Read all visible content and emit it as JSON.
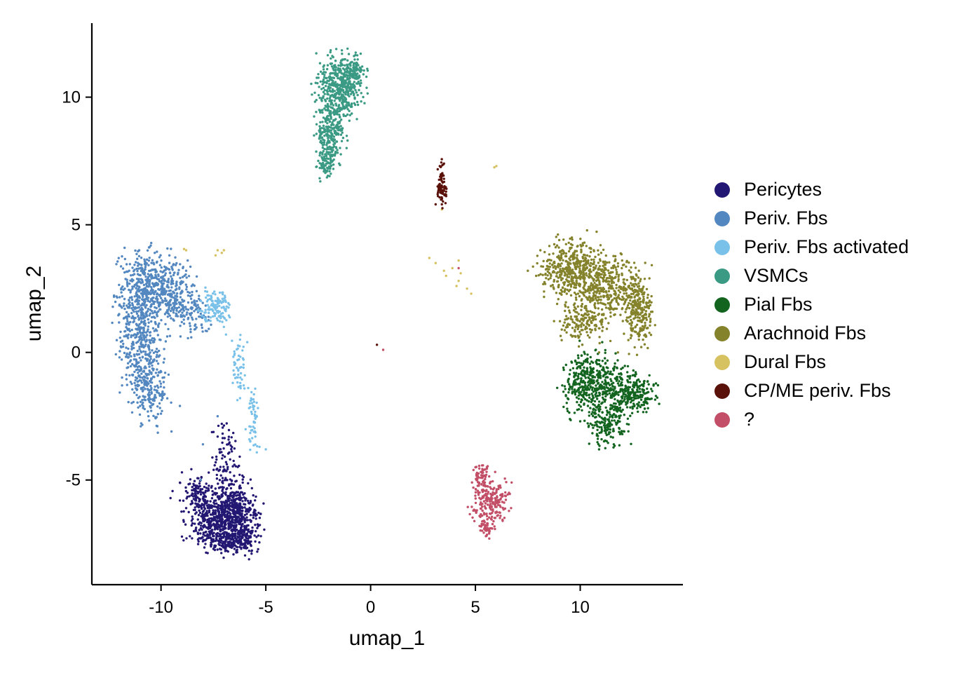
{
  "chart_data": {
    "type": "scatter",
    "xlabel": "umap_1",
    "ylabel": "umap_2",
    "xlim": [
      -13.3,
      14.9
    ],
    "ylim": [
      -9.1,
      12.9
    ],
    "xticks": [
      -10,
      -5,
      0,
      5,
      10
    ],
    "yticks": [
      -5,
      0,
      5,
      10
    ],
    "xtick_labels": [
      "-10",
      "-5",
      "0",
      "5",
      "10"
    ],
    "ytick_labels": [
      "-5",
      "0",
      "5",
      "10"
    ],
    "grid": false,
    "legend_position": "right",
    "series": [
      {
        "name": "Pericytes",
        "color": "#221772",
        "points": [
          [
            -6.8,
            -7.8
          ],
          [
            -6.6,
            -7.3
          ],
          [
            -6.2,
            -7.1
          ],
          [
            -5.7,
            -6.6
          ],
          [
            -5.5,
            -6.2
          ],
          [
            -5.6,
            -5.6
          ],
          [
            -6.1,
            -5.1
          ],
          [
            -6.5,
            -4.4
          ],
          [
            -6.8,
            -3.6
          ],
          [
            -7.1,
            -2.8
          ],
          [
            -7.3,
            -3.3
          ],
          [
            -7.2,
            -4.6
          ],
          [
            -7.6,
            -5.3
          ],
          [
            -8.4,
            -5.4
          ],
          [
            -9.0,
            -4.7
          ],
          [
            -9.1,
            -5.1
          ],
          [
            -8.8,
            -6.1
          ],
          [
            -8.5,
            -6.7
          ],
          [
            -8.0,
            -7.4
          ],
          [
            -7.5,
            -7.7
          ],
          [
            -6.0,
            -7.6
          ],
          [
            -5.7,
            -7.0
          ],
          [
            -6.6,
            -6.0
          ],
          [
            -7.3,
            -6.5
          ],
          [
            -6.0,
            -6.8
          ],
          [
            -7.7,
            -6.1
          ]
        ],
        "cloud": [
          [
            -7.0,
            -6.7,
            0.85,
            0.55,
            600
          ],
          [
            -6.3,
            -6.2,
            0.45,
            0.8,
            200
          ],
          [
            -6.9,
            -4.5,
            0.3,
            0.9,
            110
          ],
          [
            -8.2,
            -5.6,
            0.55,
            0.4,
            130
          ],
          [
            -6.5,
            -7.4,
            0.6,
            0.25,
            120
          ]
        ]
      },
      {
        "name": "Periv. Fbs",
        "color": "#5387C0",
        "points": [
          [
            -12.0,
            1.5
          ],
          [
            -11.9,
            0.2
          ],
          [
            -11.5,
            -0.9
          ],
          [
            -11.0,
            -2.1
          ],
          [
            -10.6,
            -2.5
          ],
          [
            -10.0,
            -2.4
          ],
          [
            -9.7,
            -1.8
          ],
          [
            -9.8,
            -0.8
          ],
          [
            -10.3,
            0.5
          ],
          [
            -10.1,
            1.8
          ],
          [
            -9.5,
            2.8
          ],
          [
            -8.8,
            3.2
          ],
          [
            -8.6,
            2.2
          ],
          [
            -8.4,
            0.9
          ],
          [
            -9.6,
            3.8
          ],
          [
            -10.3,
            3.9
          ],
          [
            -11.1,
            3.5
          ],
          [
            -11.6,
            2.6
          ],
          [
            -9.1,
            -2.1
          ],
          [
            -9.5,
            -3.1
          ],
          [
            -8.0,
            -3.6
          ],
          [
            -7.3,
            -2.5
          ],
          [
            -8.1,
            -5.0
          ]
        ],
        "cloud": [
          [
            -10.5,
            2.6,
            0.85,
            0.75,
            480
          ],
          [
            -11.0,
            0.6,
            0.55,
            1.1,
            360
          ],
          [
            -10.5,
            -1.4,
            0.45,
            0.7,
            180
          ],
          [
            -9.2,
            2.0,
            0.45,
            0.7,
            130
          ],
          [
            -8.3,
            1.6,
            0.35,
            0.5,
            60
          ]
        ]
      },
      {
        "name": "Periv. Fbs activated",
        "color": "#7AC1EA",
        "points": [
          [
            -7.6,
            2.2
          ],
          [
            -7.2,
            1.6
          ],
          [
            -6.9,
            0.7
          ],
          [
            -6.5,
            -0.1
          ],
          [
            -6.0,
            -0.9
          ],
          [
            -5.7,
            -1.8
          ],
          [
            -5.5,
            -2.6
          ],
          [
            -5.5,
            -3.3
          ],
          [
            -5.3,
            -3.7
          ],
          [
            -5.0,
            -3.8
          ],
          [
            -6.2,
            -1.4
          ],
          [
            -7.0,
            1.0
          ],
          [
            -7.8,
            2.0
          ]
        ],
        "cloud": [
          [
            -7.4,
            1.8,
            0.35,
            0.35,
            120
          ],
          [
            -6.3,
            -0.6,
            0.2,
            0.7,
            50
          ],
          [
            -5.6,
            -2.4,
            0.15,
            0.7,
            50
          ]
        ]
      },
      {
        "name": "VSMCs",
        "color": "#3A9A84",
        "points": [
          [
            -2.4,
            6.7
          ],
          [
            -2.2,
            7.2
          ],
          [
            -2.7,
            8.5
          ],
          [
            -2.8,
            10.1
          ],
          [
            -2.5,
            10.9
          ],
          [
            -1.9,
            11.3
          ],
          [
            -1.1,
            11.9
          ],
          [
            -0.4,
            11.2
          ],
          [
            -0.2,
            10.8
          ],
          [
            -0.6,
            9.7
          ],
          [
            -1.1,
            8.3
          ],
          [
            -1.5,
            7.4
          ],
          [
            -1.9,
            7.0
          ]
        ],
        "cloud": [
          [
            -1.5,
            10.4,
            0.55,
            0.65,
            430
          ],
          [
            -1.9,
            8.6,
            0.35,
            0.6,
            230
          ],
          [
            -2.1,
            7.4,
            0.22,
            0.3,
            70
          ],
          [
            -0.8,
            11.0,
            0.3,
            0.4,
            90
          ]
        ]
      },
      {
        "name": "Pial Fbs",
        "color": "#12641F",
        "points": [
          [
            9.2,
            -0.6
          ],
          [
            9.4,
            -1.8
          ],
          [
            10.0,
            -2.7
          ],
          [
            10.8,
            -3.2
          ],
          [
            10.9,
            -3.8
          ],
          [
            11.6,
            -3.6
          ],
          [
            12.1,
            -3.1
          ],
          [
            12.5,
            -2.2
          ],
          [
            13.2,
            -2.0
          ],
          [
            13.5,
            -1.3
          ],
          [
            13.3,
            -0.9
          ],
          [
            12.5,
            -0.9
          ],
          [
            11.6,
            -0.7
          ],
          [
            10.8,
            -0.3
          ],
          [
            10.1,
            0.3
          ],
          [
            9.6,
            -0.4
          ],
          [
            9.4,
            -2.3
          ]
        ],
        "cloud": [
          [
            10.6,
            -1.2,
            0.75,
            0.65,
            420
          ],
          [
            12.5,
            -1.6,
            0.6,
            0.45,
            240
          ],
          [
            11.3,
            -2.8,
            0.5,
            0.45,
            160
          ]
        ]
      },
      {
        "name": "Arachnoid Fbs",
        "color": "#84822A",
        "points": [
          [
            7.5,
            3.2
          ],
          [
            8.1,
            4.0
          ],
          [
            9.0,
            4.4
          ],
          [
            9.6,
            4.5
          ],
          [
            10.2,
            4.3
          ],
          [
            11.0,
            3.9
          ],
          [
            12.0,
            3.6
          ],
          [
            12.8,
            3.2
          ],
          [
            13.3,
            2.9
          ],
          [
            13.4,
            2.2
          ],
          [
            13.3,
            1.5
          ],
          [
            13.1,
            0.7
          ],
          [
            12.6,
            0.2
          ],
          [
            11.8,
            0.0
          ],
          [
            10.9,
            0.0
          ],
          [
            10.1,
            0.3
          ],
          [
            9.4,
            1.0
          ],
          [
            8.9,
            1.9
          ],
          [
            8.6,
            2.6
          ],
          [
            7.9,
            3.0
          ]
        ],
        "cloud": [
          [
            9.6,
            3.3,
            0.8,
            0.55,
            380
          ],
          [
            11.2,
            2.6,
            0.9,
            0.65,
            400
          ],
          [
            12.8,
            1.6,
            0.35,
            0.7,
            230
          ],
          [
            10.2,
            1.2,
            0.65,
            0.4,
            150
          ]
        ]
      },
      {
        "name": "Dural Fbs",
        "color": "#D6C260",
        "points": [
          [
            -8.8,
            4.0
          ],
          [
            -8.9,
            4.05
          ],
          [
            -7.4,
            3.8
          ],
          [
            -7.1,
            3.9
          ],
          [
            -7.0,
            4.0
          ],
          [
            -7.3,
            4.0
          ],
          [
            2.8,
            3.7
          ],
          [
            3.1,
            3.5
          ],
          [
            3.5,
            3.2
          ],
          [
            3.9,
            3.3
          ],
          [
            4.2,
            3.6
          ],
          [
            4.3,
            3.1
          ],
          [
            4.2,
            2.8
          ],
          [
            4.6,
            2.5
          ],
          [
            4.8,
            2.3
          ],
          [
            3.6,
            3.0
          ],
          [
            4.1,
            2.6
          ],
          [
            6.0,
            7.3
          ],
          [
            5.9,
            7.25
          ],
          [
            3.4,
            5.6
          ]
        ],
        "cloud": []
      },
      {
        "name": "CP/ME periv. Fbs",
        "color": "#591109",
        "points": [
          [
            3.1,
            5.8
          ],
          [
            3.2,
            6.2
          ],
          [
            3.3,
            6.6
          ],
          [
            3.4,
            7.0
          ],
          [
            3.3,
            7.3
          ],
          [
            3.5,
            7.4
          ],
          [
            3.5,
            6.8
          ],
          [
            3.6,
            6.3
          ],
          [
            3.4,
            5.8
          ],
          [
            3.2,
            6.5
          ],
          [
            0.3,
            0.3
          ]
        ],
        "cloud": [
          [
            3.38,
            6.6,
            0.12,
            0.45,
            70
          ]
        ]
      },
      {
        "name": "?",
        "color": "#C24F67",
        "points": [
          [
            5.0,
            -4.5
          ],
          [
            5.4,
            -4.6
          ],
          [
            5.7,
            -5.1
          ],
          [
            6.2,
            -5.3
          ],
          [
            6.6,
            -5.5
          ],
          [
            6.7,
            -6.1
          ],
          [
            6.3,
            -6.6
          ],
          [
            5.8,
            -6.9
          ],
          [
            5.5,
            -7.2
          ],
          [
            5.2,
            -6.8
          ],
          [
            4.9,
            -6.2
          ],
          [
            4.9,
            -5.3
          ],
          [
            4.2,
            3.3
          ],
          [
            0.6,
            0.1
          ]
        ],
        "cloud": [
          [
            5.7,
            -5.9,
            0.45,
            0.5,
            210
          ],
          [
            5.3,
            -4.8,
            0.2,
            0.3,
            50
          ],
          [
            5.5,
            -6.9,
            0.18,
            0.2,
            30
          ]
        ]
      }
    ]
  }
}
